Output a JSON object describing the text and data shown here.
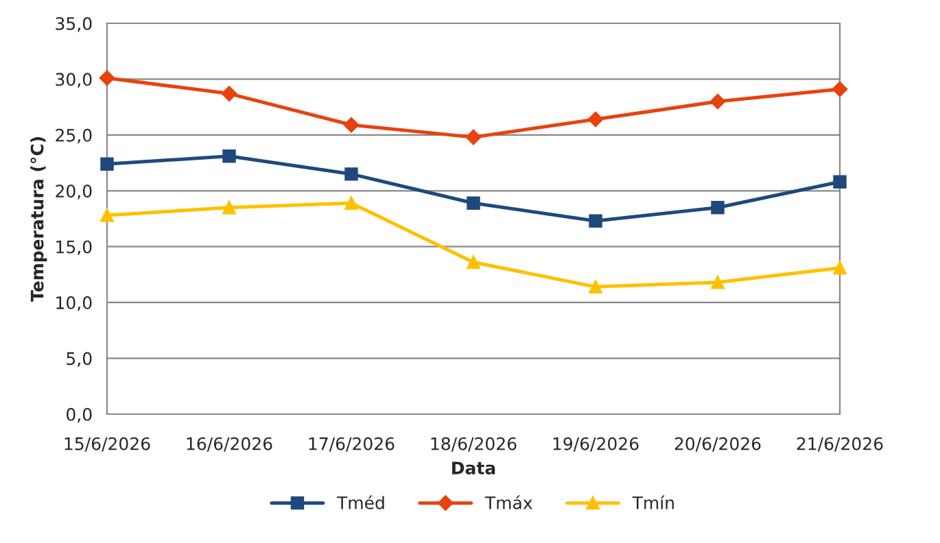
{
  "chart_data": {
    "type": "line",
    "xlabel": "Data",
    "ylabel": "Temperatura (°C)",
    "categories": [
      "15/6/2026",
      "16/6/2026",
      "17/6/2026",
      "18/6/2026",
      "19/6/2026",
      "20/6/2026",
      "21/6/2026"
    ],
    "series": [
      {
        "name": "Tméd",
        "color": "#1f497d",
        "marker": "square",
        "values": [
          22.4,
          23.1,
          21.5,
          18.9,
          17.3,
          18.5,
          20.8
        ]
      },
      {
        "name": "Tmáx",
        "color": "#e8420f",
        "marker": "diamond",
        "values": [
          30.1,
          28.7,
          25.9,
          24.8,
          26.4,
          28.0,
          29.1
        ]
      },
      {
        "name": "Tmín",
        "color": "#ffc000",
        "marker": "triangle",
        "values": [
          17.8,
          18.5,
          18.9,
          13.6,
          11.4,
          11.8,
          13.1
        ]
      }
    ],
    "ylim": [
      0,
      35
    ],
    "yticks": [
      {
        "value": 0,
        "label": "0,0"
      },
      {
        "value": 5,
        "label": "5,0"
      },
      {
        "value": 10,
        "label": "10,0"
      },
      {
        "value": 15,
        "label": "15,0"
      },
      {
        "value": 20,
        "label": "20,0"
      },
      {
        "value": 25,
        "label": "25,0"
      },
      {
        "value": 30,
        "label": "30,0"
      },
      {
        "value": 35,
        "label": "35,0"
      }
    ],
    "grid": "y",
    "legend": "bottom",
    "line_style": "solid"
  }
}
